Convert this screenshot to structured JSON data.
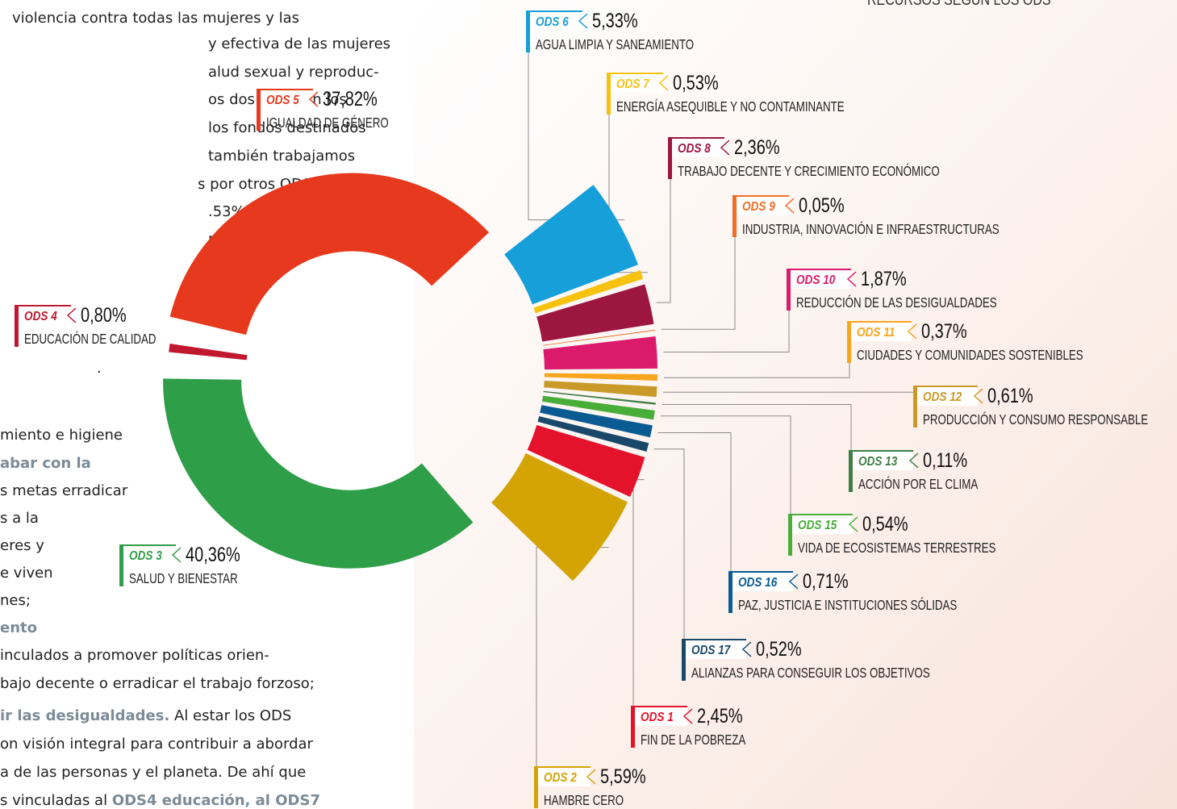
{
  "heading": "RECURSOS SEGÚN LOS ODS",
  "text_lines": [
    [
      {
        "text": "violencia contra todas las mujeres y las"
      }
    ],
    [
      {
        "text": "y efectiva de las mujeres"
      }
    ],
    [
      {
        "text": "alud sexual y reproduc-"
      }
    ],
    [
      {
        "text": "os dos ODS son los"
      }
    ],
    [
      {
        "text": "los fondos destinados"
      }
    ],
    [
      {
        "text": "también trabajamos"
      }
    ],
    [
      {
        "text": "s por otros ODS como"
      }
    ],
    [
      {
        "text": ".53%, que incluye"
      }
    ],
    [
      {
        "text": "mas de malnutri-"
      }
    ],
    [
      {
        "text": "."
      }
    ],
    [
      {
        "text": "miento e higiene"
      }
    ],
    [
      {
        "text": "abar con la",
        "bold": true
      }
    ],
    [
      {
        "text": "s metas erradicar"
      }
    ],
    [
      {
        "text": "s a la"
      }
    ],
    [
      {
        "text": "eres y"
      }
    ],
    [
      {
        "text": "e viven"
      }
    ],
    [
      {
        "text": "nes;"
      }
    ],
    [
      {
        "text": "ento",
        "bold": true
      }
    ],
    [
      {
        "text": "inculados a promover políticas orien-"
      }
    ],
    [
      {
        "text": "bajo decente o erradicar el trabajo forzoso;"
      }
    ],
    [
      {
        "text": "ir las desigualdades.",
        "bold": true
      },
      {
        "text": " Al estar los ODS"
      }
    ],
    [
      {
        "text": "on visión integral para contribuir a abordar"
      }
    ],
    [
      {
        "text": "a de las personas y el planeta.  De ahí que"
      }
    ],
    [
      {
        "text": "s vinculadas al "
      },
      {
        "text": "ODS4 educación, al ODS7",
        "bold": true
      }
    ]
  ],
  "chart_data": {
    "type": "donut",
    "tags": [
      "ODS 6",
      "ODS 7",
      "ODS 8",
      "ODS 9",
      "ODS 10",
      "ODS 11",
      "ODS 12",
      "ODS 13",
      "ODS 15",
      "ODS 16",
      "ODS 17",
      "ODS 1",
      "ODS 2",
      "ODS 3",
      "ODS 4",
      "ODS 5"
    ],
    "categories": [
      "AGUA LIMPIA Y SANEAMIENTO",
      "ENERGÍA ASEQUIBLE Y NO CONTAMINANTE",
      "TRABAJO DECENTE Y CRECIMIENTO ECONÓMICO",
      "INDUSTRIA, INNOVACIÓN E INFRAESTRUCTURAS",
      "REDUCCIÓN DE LAS DESIGUALDADES",
      "CIUDADES Y COMUNIDADES SOSTENIBLES",
      "PRODUCCIÓN Y CONSUMO RESPONSABLE",
      "ACCIÓN POR EL CLIMA",
      "VIDA DE ECOSISTEMAS TERRESTRES",
      "PAZ, JUSTICIA E INSTITUCIONES SÓLIDAS",
      "ALIANZAS PARA CONSEGUIR LOS OBJETIVOS",
      "FIN DE LA POBREZA",
      "HAMBRE CERO",
      "SALUD Y BIENESTAR",
      "EDUCACIÓN DE CALIDAD",
      "IGUALDAD DE GÉNERO"
    ],
    "values": [
      5.33,
      0.53,
      2.36,
      0.05,
      1.87,
      0.37,
      0.61,
      0.11,
      0.54,
      0.71,
      0.52,
      2.45,
      5.59,
      40.36,
      0.8,
      37.82
    ],
    "value_labels": [
      "5,33%",
      "0,53%",
      "2,36%",
      "0,05%",
      "1,87%",
      "0,37%",
      "0,61%",
      "0,11%",
      "0,54%",
      "0,71%",
      "0,52%",
      "2,45%",
      "5,59%",
      "40,36%",
      "0,80%",
      "37,82%"
    ],
    "colors": [
      "#169fd8",
      "#f7c20e",
      "#9c1640",
      "#f36d25",
      "#dc1a6b",
      "#f9a51e",
      "#c99a2a",
      "#3f7e44",
      "#49ad3a",
      "#0a5b92",
      "#19486a",
      "#e5122b",
      "#d4a304",
      "#2f9e48",
      "#c1182f",
      "#e6391d"
    ]
  }
}
